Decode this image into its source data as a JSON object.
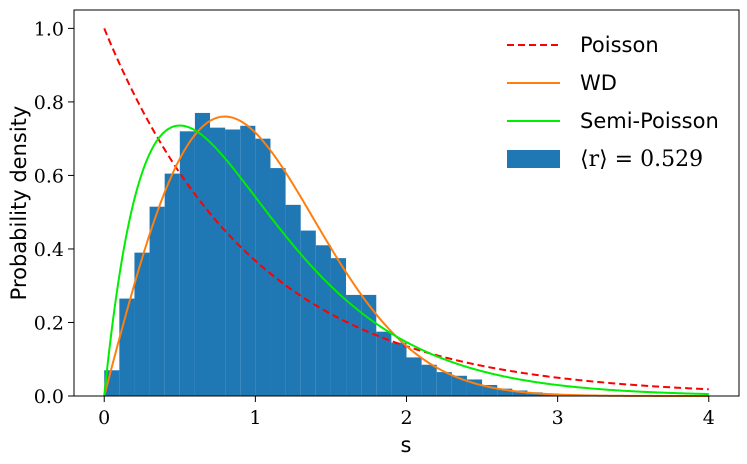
{
  "chart_data": {
    "type": "bar",
    "xlabel": "s",
    "ylabel": "Probability density",
    "xlim": [
      -0.2,
      4.2
    ],
    "ylim": [
      0,
      1.05
    ],
    "x_ticks": [
      "0",
      "1",
      "2",
      "3",
      "4"
    ],
    "y_ticks": [
      "0.0",
      "0.2",
      "0.4",
      "0.6",
      "0.8",
      "1.0"
    ],
    "legend_position": "top-right",
    "histogram": {
      "name": "⟨r⟩ = 0.529",
      "color": "#1f77b4",
      "bin_width": 0.1,
      "bin_starts": [
        0.0,
        0.1,
        0.2,
        0.3,
        0.4,
        0.5,
        0.6,
        0.7,
        0.8,
        0.9,
        1.0,
        1.1,
        1.2,
        1.3,
        1.4,
        1.5,
        1.6,
        1.7,
        1.8,
        1.9,
        2.0,
        2.1,
        2.2,
        2.3,
        2.4,
        2.5,
        2.6,
        2.7,
        2.8,
        2.9,
        3.0,
        3.1,
        3.2,
        3.3,
        3.4,
        3.5,
        3.6,
        3.7,
        3.8,
        3.9
      ],
      "values": [
        0.07,
        0.265,
        0.39,
        0.515,
        0.605,
        0.72,
        0.77,
        0.73,
        0.725,
        0.735,
        0.7,
        0.62,
        0.52,
        0.45,
        0.41,
        0.375,
        0.275,
        0.275,
        0.175,
        0.145,
        0.105,
        0.085,
        0.065,
        0.055,
        0.045,
        0.03,
        0.02,
        0.015,
        0.01,
        0.007,
        0.005,
        0.003,
        0.002,
        0.002,
        0.001,
        0.001,
        0.001,
        0.0005,
        0.0005,
        0.0005
      ]
    },
    "series": [
      {
        "name": "Poisson",
        "color": "#ff0000",
        "style": "dashed",
        "formula": "exp(-s)"
      },
      {
        "name": "WD",
        "color": "#ff7f0e",
        "style": "solid",
        "formula": "pi/2*s*exp(-pi*s^2/4)"
      },
      {
        "name": "Semi-Poisson",
        "color": "#00ee00",
        "style": "solid",
        "formula": "4*s*exp(-2*s)"
      }
    ]
  }
}
